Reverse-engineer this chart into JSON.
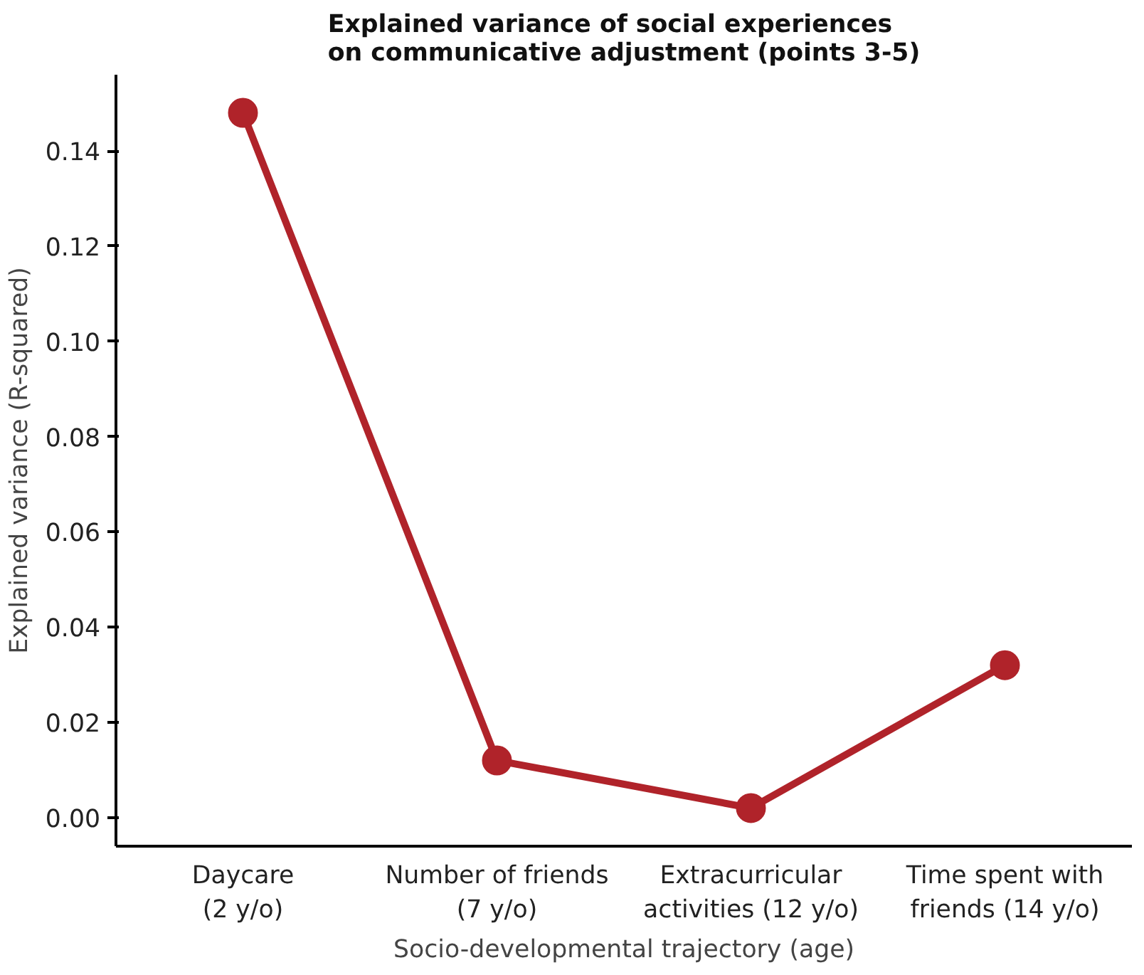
{
  "chart_data": {
    "type": "line",
    "title": "Explained variance of social experiences\non communicative adjustment (points 3-5)",
    "xlabel": "Socio-developmental trajectory (age)",
    "ylabel": "Explained variance (R-squared)",
    "categories": [
      "Daycare\n(2 y/o)",
      "Number of friends\n(7 y/o)",
      "Extracurricular\nactivities (12 y/o)",
      "Time spent with\nfriends (14 y/o)"
    ],
    "series": [
      {
        "color": "#b0232a",
        "values": [
          0.148,
          0.012,
          0.002,
          0.032
        ]
      }
    ],
    "ylim": [
      -0.006,
      0.156
    ],
    "yticks": [
      {
        "value": 0,
        "label": "0.00"
      },
      {
        "value": 0.02,
        "label": "0.02"
      },
      {
        "value": 0.04,
        "label": "0.04"
      },
      {
        "value": 0.06,
        "label": "0.06"
      },
      {
        "value": 0.08,
        "label": "0.08"
      },
      {
        "value": 0.1,
        "label": "0.10"
      },
      {
        "value": 0.12,
        "label": "0.12"
      },
      {
        "value": 0.14,
        "label": "0.14"
      }
    ],
    "grid": false,
    "marker": "circle",
    "line_style": "solid"
  }
}
